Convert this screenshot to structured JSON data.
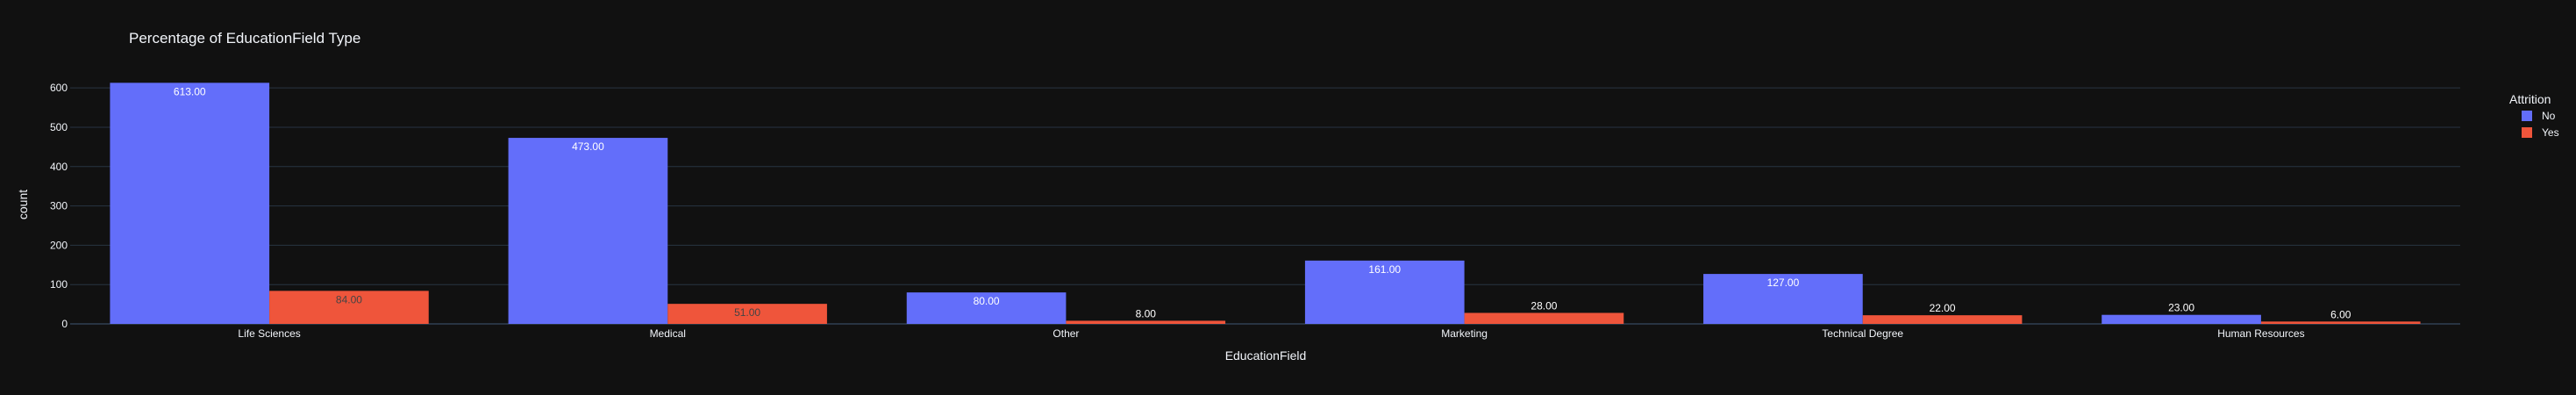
{
  "chart_data": {
    "type": "bar",
    "barmode": "group",
    "title": "Percentage of EducationField Type",
    "xlabel": "EducationField",
    "ylabel": "count",
    "categories": [
      "Life Sciences",
      "Medical",
      "Other",
      "Marketing",
      "Technical Degree",
      "Human Resources"
    ],
    "series": [
      {
        "name": "No",
        "color": "#636efa",
        "values": [
          613,
          473,
          80,
          161,
          127,
          23
        ],
        "labels": [
          "613.00",
          "473.00",
          "80.00",
          "161.00",
          "127.00",
          "23.00"
        ]
      },
      {
        "name": "Yes",
        "color": "#ef553b",
        "values": [
          84,
          51,
          8,
          28,
          22,
          6
        ],
        "labels": [
          "84.00",
          "51.00",
          "8.00",
          "28.00",
          "22.00",
          "6.00"
        ]
      }
    ],
    "ylim": [
      0,
      645
    ],
    "yticks": [
      0,
      100,
      200,
      300,
      400,
      500,
      600
    ],
    "grid": true,
    "legend": {
      "title": "Attrition",
      "placement": "top-right"
    },
    "colors": {
      "background": "#111111",
      "grid": "#283442",
      "text": "#f2f5fa"
    }
  }
}
